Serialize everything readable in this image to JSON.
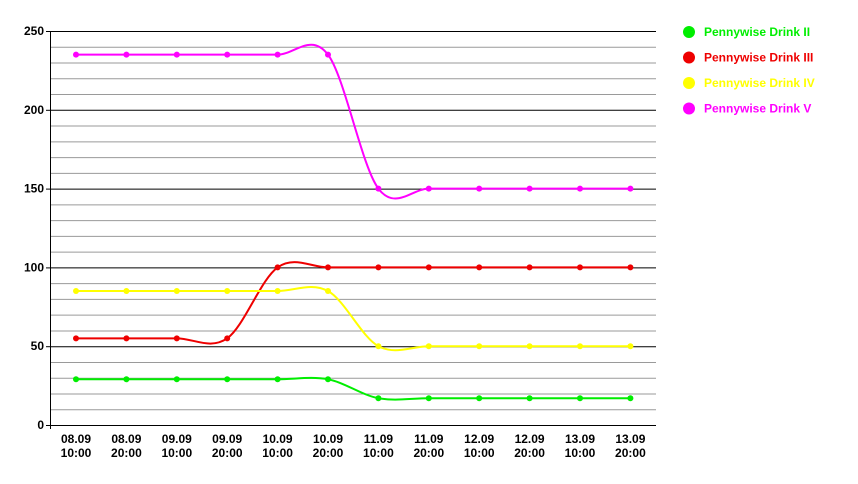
{
  "chart_data": {
    "type": "line",
    "title": "",
    "xlabel": "",
    "ylabel": "",
    "ylim": [
      0,
      250
    ],
    "yticks": [
      0,
      50,
      100,
      150,
      200,
      250
    ],
    "minor_grid_step": 10,
    "grid": true,
    "legend_position": "top-right",
    "categories": [
      [
        "08.09",
        "10:00"
      ],
      [
        "08.09",
        "20:00"
      ],
      [
        "09.09",
        "10:00"
      ],
      [
        "09.09",
        "20:00"
      ],
      [
        "10.09",
        "10:00"
      ],
      [
        "10.09",
        "20:00"
      ],
      [
        "11.09",
        "10:00"
      ],
      [
        "11.09",
        "20:00"
      ],
      [
        "12.09",
        "10:00"
      ],
      [
        "12.09",
        "20:00"
      ],
      [
        "13.09",
        "10:00"
      ],
      [
        "13.09",
        "20:00"
      ]
    ],
    "series": [
      {
        "name": "Pennywise Drink II",
        "color": "#00ee00",
        "values": [
          29,
          29,
          29,
          29,
          29,
          29,
          17,
          17,
          17,
          17,
          17,
          17
        ]
      },
      {
        "name": "Pennywise Drink III",
        "color": "#ee0000",
        "values": [
          55,
          55,
          55,
          55,
          100,
          100,
          100,
          100,
          100,
          100,
          100,
          100
        ]
      },
      {
        "name": "Pennywise Drink IV",
        "color": "#ffff00",
        "values": [
          85,
          85,
          85,
          85,
          85,
          85,
          50,
          50,
          50,
          50,
          50,
          50
        ]
      },
      {
        "name": "Pennywise Drink V",
        "color": "#ff00ff",
        "values": [
          235,
          235,
          235,
          235,
          235,
          235,
          150,
          150,
          150,
          150,
          150,
          150
        ]
      }
    ]
  }
}
